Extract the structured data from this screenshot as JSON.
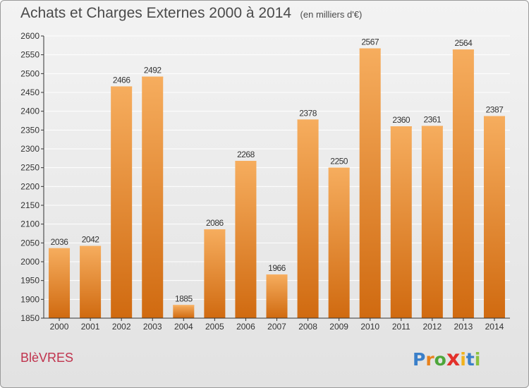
{
  "title": "Achats et Charges Externes 2000 à 2014",
  "subtitle": "(en milliers d'€)",
  "commune": "BlèVRES",
  "logo": {
    "letters": [
      "P",
      "r",
      "o",
      "x",
      "i",
      "t",
      "i"
    ],
    "colors": [
      "#3a7fc9",
      "#e8821d",
      "#4da63a",
      "#e3312b",
      "#f2b21c",
      "#3a7fc9",
      "#8bc23f"
    ]
  },
  "colors": {
    "bar": "#f08a25",
    "bar_light": "#f6ad5e",
    "bar_dark": "#d06a10",
    "grid": "#ffffff",
    "axis": "#333333",
    "text": "#333333"
  },
  "chart_data": {
    "type": "bar",
    "categories": [
      "2000",
      "2001",
      "2002",
      "2003",
      "2004",
      "2005",
      "2006",
      "2007",
      "2008",
      "2009",
      "2010",
      "2011",
      "2012",
      "2013",
      "2014"
    ],
    "values": [
      2036,
      2042,
      2466,
      2492,
      1885,
      2086,
      2268,
      1966,
      2378,
      2250,
      2567,
      2360,
      2361,
      2564,
      2387
    ],
    "ylim": [
      1850,
      2600
    ],
    "yticks": [
      1850,
      1900,
      1950,
      2000,
      2050,
      2100,
      2150,
      2200,
      2250,
      2300,
      2350,
      2400,
      2450,
      2500,
      2550,
      2600
    ],
    "grid": true,
    "data_labels": true
  }
}
